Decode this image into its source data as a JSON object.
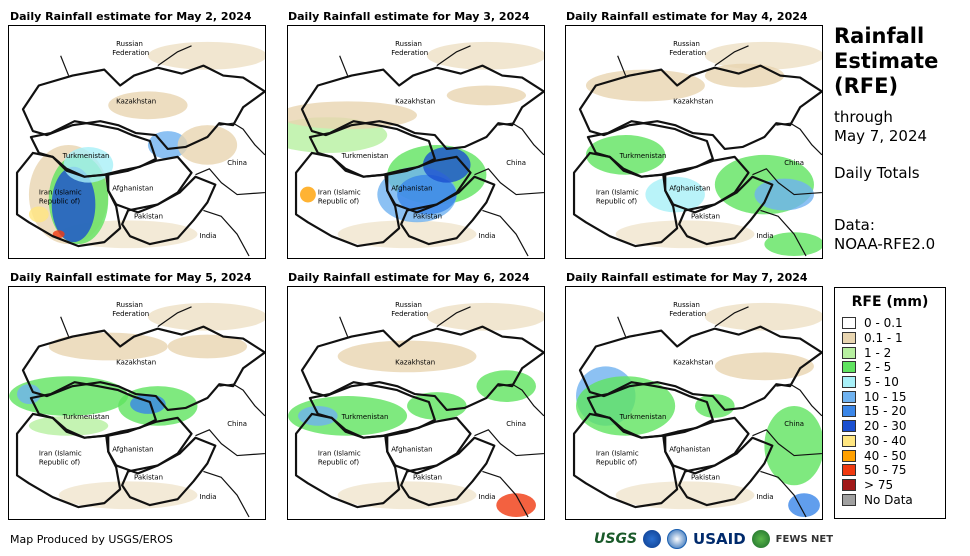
{
  "panels": [
    {
      "title": "Daily Rainfall estimate for May 2, 2024"
    },
    {
      "title": "Daily Rainfall estimate for May 3, 2024"
    },
    {
      "title": "Daily Rainfall estimate for May 4, 2024"
    },
    {
      "title": "Daily Rainfall estimate for May 5, 2024"
    },
    {
      "title": "Daily Rainfall estimate for May 6, 2024"
    },
    {
      "title": "Daily Rainfall estimate for May 7, 2024"
    }
  ],
  "map_labels": {
    "russia_1": "Russian",
    "russia_2": "Federation",
    "kazakhstan": "Kazakhstan",
    "turkmenistan": "Turkmenistan",
    "china": "China",
    "iran_1": "Iran  (Islamic",
    "iran_2": "Republic of)",
    "afghanistan": "Afghanistan",
    "pakistan": "Pakistan",
    "india": "India"
  },
  "side": {
    "title_1": "Rainfall",
    "title_2": "Estimate",
    "title_3": "(RFE)",
    "through": "through",
    "date": "May 7, 2024",
    "totals": "Daily Totals",
    "data_label": "Data:",
    "data_source": "NOAA-RFE2.0"
  },
  "legend": {
    "title": "RFE (mm)",
    "items": [
      {
        "label": "0 - 0.1",
        "color": "#ffffff"
      },
      {
        "label": "0.1 - 1",
        "color": "#e8d5b0"
      },
      {
        "label": "1 - 2",
        "color": "#b7f0a0"
      },
      {
        "label": "2 - 5",
        "color": "#5fe35f"
      },
      {
        "label": "5 - 10",
        "color": "#a8f0f8"
      },
      {
        "label": "10 - 15",
        "color": "#6fb2f0"
      },
      {
        "label": "15 - 20",
        "color": "#3a86e8"
      },
      {
        "label": "20 - 30",
        "color": "#1a4fd0"
      },
      {
        "label": "30 - 40",
        "color": "#ffe680"
      },
      {
        "label": "40 - 50",
        "color": "#ffa000"
      },
      {
        "label": "50 - 75",
        "color": "#f03a10"
      },
      {
        "label": "> 75",
        "color": "#a01818"
      },
      {
        "label": "No Data",
        "color": "#a0a0a0"
      }
    ]
  },
  "footer": {
    "produced_by": "Map Produced by USGS/EROS"
  },
  "logos": {
    "usgs": "USGS",
    "usaid": "USAID",
    "fews": "FEWS NET"
  }
}
